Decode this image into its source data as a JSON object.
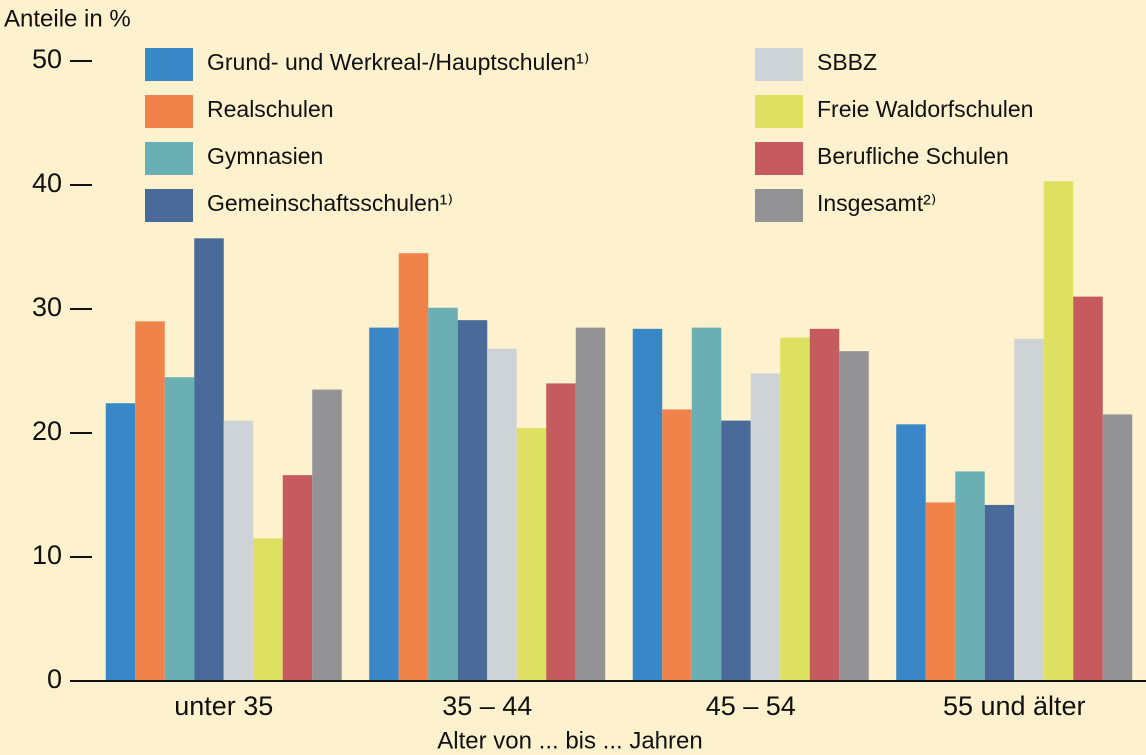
{
  "chart_data": {
    "type": "bar",
    "ylabel": "Anteile in %",
    "xlabel": "Alter von ... bis ... Jahren",
    "categories": [
      "unter 35",
      "35 – 44",
      "45 – 54",
      "55 und älter"
    ],
    "series": [
      {
        "name": "Grund- und Werkreal-/Hauptschulen¹⁾",
        "color": "#3a87c8",
        "values": [
          22.4,
          28.5,
          28.4,
          20.7
        ]
      },
      {
        "name": "Realschulen",
        "color": "#f0834a",
        "values": [
          29.0,
          34.5,
          21.9,
          14.4
        ]
      },
      {
        "name": "Gymnasien",
        "color": "#6aafb3",
        "values": [
          24.5,
          30.1,
          28.5,
          16.9
        ]
      },
      {
        "name": "Gemeinschaftsschulen¹⁾",
        "color": "#4a6a9a",
        "values": [
          35.7,
          29.1,
          21.0,
          14.2
        ]
      },
      {
        "name": "SBBZ",
        "color": "#cdd3d6",
        "values": [
          21.0,
          26.8,
          24.8,
          27.6
        ]
      },
      {
        "name": "Freie Waldorfschulen",
        "color": "#dde060",
        "values": [
          11.5,
          20.4,
          27.7,
          40.3
        ]
      },
      {
        "name": "Berufliche Schulen",
        "color": "#c75a5e",
        "values": [
          16.6,
          24.0,
          28.4,
          31.0
        ]
      },
      {
        "name": "Insgesamt²⁾",
        "color": "#939395",
        "values": [
          23.5,
          28.5,
          26.6,
          21.5
        ]
      }
    ],
    "ylim": [
      0,
      50
    ],
    "yticks": [
      0,
      10,
      20,
      30,
      40,
      50
    ],
    "grid": false
  }
}
